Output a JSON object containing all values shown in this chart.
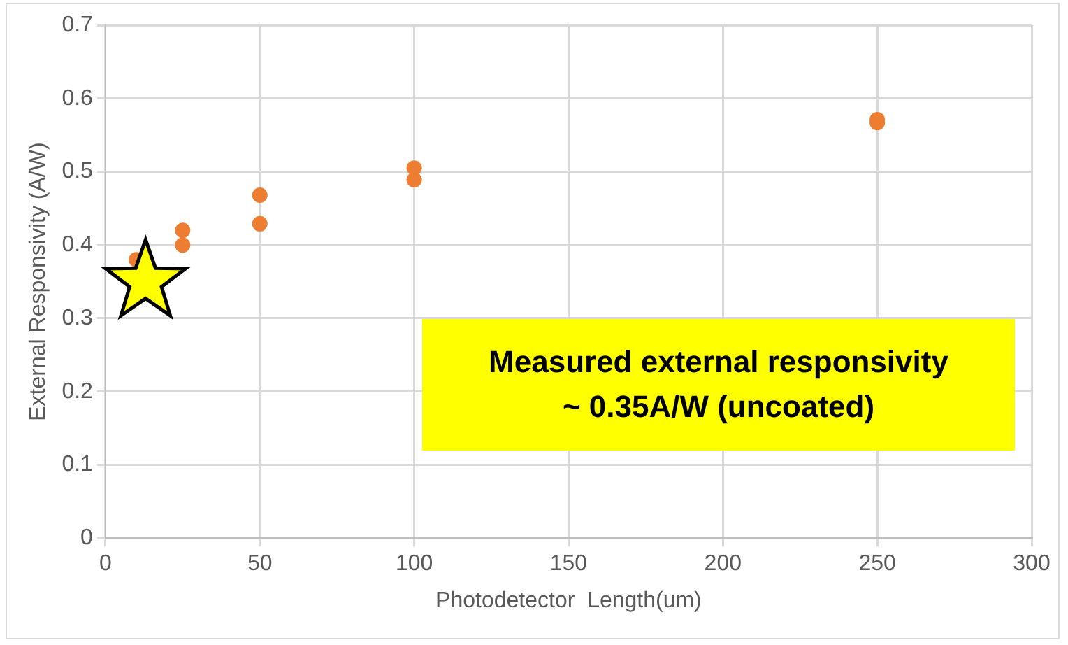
{
  "chart_data": {
    "type": "scatter",
    "xlabel": "Photodetector  Length(um)",
    "ylabel": "External Responsivity (A/W)",
    "series": [
      {
        "color": "#ed7d31",
        "marker": "circle",
        "x": [
          10,
          25,
          25,
          50,
          50,
          100,
          100,
          250,
          250
        ],
        "values": [
          0.38,
          0.42,
          0.4,
          0.468,
          0.429,
          0.505,
          0.489,
          0.571,
          0.567
        ]
      },
      {
        "color": "#ffff00",
        "marker": "star",
        "x": [
          13
        ],
        "values": [
          0.35
        ]
      }
    ],
    "xlim": [
      0,
      300
    ],
    "xticks": [
      0,
      50,
      100,
      150,
      200,
      250,
      300
    ],
    "ylim": [
      0,
      0.7
    ],
    "yticks": [
      0,
      0.1,
      0.2,
      0.3,
      0.4,
      0.5,
      0.6,
      0.7
    ],
    "grid": true,
    "annotations": [
      "Measured external responsivity\n~ 0.35A/W (uncoated)"
    ]
  }
}
